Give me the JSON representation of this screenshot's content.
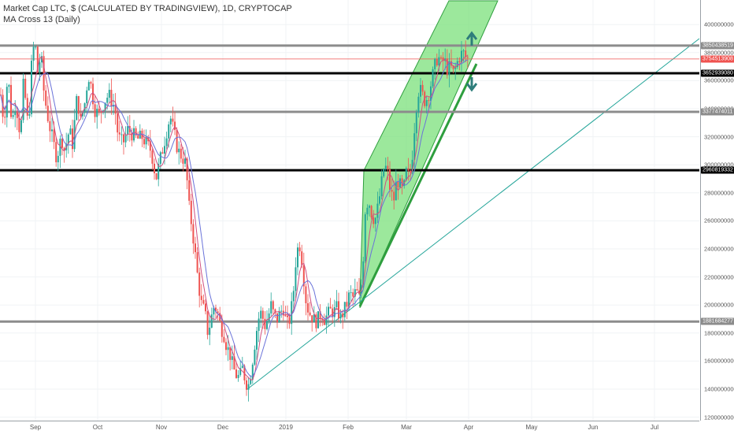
{
  "legend": {
    "title": "Market Cap LTC, $ (CALCULATED BY TRADINGVIEW), 1D, CRYPTOCAP",
    "indicator": "MA Cross 13 (Daily)"
  },
  "chart_data": {
    "type": "candlestick",
    "title": "Market Cap LTC, $ (CALCULATED BY TRADINGVIEW), 1D, CRYPTOCAP",
    "yaxis_ticks": [
      "4000000000",
      "3800000000",
      "3600000000",
      "3400000000",
      "3200000000",
      "3000000000",
      "2800000000",
      "2600000000",
      "2400000000",
      "2200000000",
      "2000000000",
      "1800000000",
      "1600000000",
      "1400000000",
      "1200000000"
    ],
    "xaxis_ticks": [
      "Sep",
      "Oct",
      "Nov",
      "Dec",
      "2019",
      "Feb",
      "Mar",
      "Apr",
      "May",
      "Jun",
      "Jul"
    ],
    "ylim": [
      1190000000,
      4170000000
    ],
    "grid": true,
    "horizontal_levels": [
      {
        "value": 3850438519,
        "label": "3850438519",
        "style": "gray-thick"
      },
      {
        "value": 3652939080,
        "label": "3652939080",
        "style": "black-thick"
      },
      {
        "value": 3377474011,
        "label": "3377474011",
        "style": "gray-thick"
      },
      {
        "value": 2960819332,
        "label": "2960819332",
        "style": "black-thick"
      },
      {
        "value": 1881684277,
        "label": "1881684277",
        "style": "gray-thick"
      }
    ],
    "current_price": {
      "value": 3754513908,
      "label": "3754513908",
      "color": "#ef5350"
    },
    "candle_path": [
      [
        0,
        3550000000
      ],
      [
        5,
        3300000000
      ],
      [
        10,
        3650000000
      ],
      [
        15,
        3300000000
      ],
      [
        20,
        3450000000
      ],
      [
        26,
        3200000000
      ],
      [
        30,
        3600000000
      ],
      [
        36,
        3250000000
      ],
      [
        40,
        3700000000
      ],
      [
        44,
        3900000000
      ],
      [
        48,
        3650000000
      ],
      [
        52,
        3800000000
      ],
      [
        56,
        3500000000
      ],
      [
        62,
        3300000000
      ],
      [
        68,
        3150000000
      ],
      [
        72,
        3050000000
      ],
      [
        78,
        3200000000
      ],
      [
        82,
        3100000000
      ],
      [
        88,
        3250000000
      ],
      [
        92,
        3150000000
      ],
      [
        98,
        3500000000
      ],
      [
        102,
        3300000000
      ],
      [
        108,
        3450000000
      ],
      [
        112,
        3650000000
      ],
      [
        116,
        3550000000
      ],
      [
        120,
        3400000000
      ],
      [
        126,
        3350000000
      ],
      [
        132,
        3450000000
      ],
      [
        138,
        3500000000
      ],
      [
        146,
        3400000000
      ],
      [
        150,
        3200000000
      ],
      [
        156,
        3150000000
      ],
      [
        162,
        3250000000
      ],
      [
        168,
        3220000000
      ],
      [
        174,
        3180000000
      ],
      [
        180,
        3200000000
      ],
      [
        186,
        3150000000
      ],
      [
        192,
        3100000000
      ],
      [
        198,
        2900000000
      ],
      [
        204,
        3050000000
      ],
      [
        210,
        3200000000
      ],
      [
        216,
        3350000000
      ],
      [
        220,
        3250000000
      ],
      [
        226,
        3100000000
      ],
      [
        232,
        3050000000
      ],
      [
        236,
        3000000000
      ],
      [
        240,
        2700000000
      ],
      [
        244,
        2550000000
      ],
      [
        248,
        2350000000
      ],
      [
        252,
        2150000000
      ],
      [
        256,
        2000000000
      ],
      [
        260,
        1950000000
      ],
      [
        264,
        1800000000
      ],
      [
        268,
        1900000000
      ],
      [
        272,
        2000000000
      ],
      [
        276,
        1950000000
      ],
      [
        280,
        1850000000
      ],
      [
        284,
        1800000000
      ],
      [
        288,
        1700000000
      ],
      [
        292,
        1650000000
      ],
      [
        296,
        1550000000
      ],
      [
        300,
        1500000000
      ],
      [
        304,
        1480000000
      ],
      [
        308,
        1550000000
      ],
      [
        312,
        1450000000
      ],
      [
        316,
        1430000000
      ],
      [
        320,
        1580000000
      ],
      [
        324,
        1750000000
      ],
      [
        328,
        1900000000
      ],
      [
        332,
        1950000000
      ],
      [
        336,
        1850000000
      ],
      [
        340,
        1900000000
      ],
      [
        344,
        2000000000
      ],
      [
        348,
        1920000000
      ],
      [
        352,
        1900000000
      ],
      [
        356,
        1950000000
      ],
      [
        360,
        1980000000
      ],
      [
        364,
        1850000000
      ],
      [
        368,
        1900000000
      ],
      [
        372,
        2050000000
      ],
      [
        376,
        2350000000
      ],
      [
        380,
        2450000000
      ],
      [
        384,
        2300000000
      ],
      [
        388,
        2050000000
      ],
      [
        392,
        1950000000
      ],
      [
        396,
        1920000000
      ],
      [
        400,
        1880000000
      ],
      [
        404,
        1900000000
      ],
      [
        408,
        1950000000
      ],
      [
        412,
        1900000000
      ],
      [
        416,
        1930000000
      ],
      [
        420,
        1960000000
      ],
      [
        424,
        1950000000
      ],
      [
        428,
        1980000000
      ],
      [
        432,
        1900000000
      ],
      [
        436,
        1950000000
      ],
      [
        440,
        2000000000
      ],
      [
        444,
        2080000000
      ],
      [
        448,
        2050000000
      ],
      [
        452,
        2100000000
      ],
      [
        456,
        2050000000
      ],
      [
        460,
        2200000000
      ],
      [
        464,
        2700000000
      ],
      [
        468,
        2750000000
      ],
      [
        472,
        2650000000
      ],
      [
        476,
        2600000000
      ],
      [
        480,
        2700000000
      ],
      [
        484,
        2850000000
      ],
      [
        488,
        3000000000
      ],
      [
        492,
        2950000000
      ],
      [
        496,
        2800000000
      ],
      [
        500,
        2750000000
      ],
      [
        504,
        2900000000
      ],
      [
        508,
        2850000000
      ],
      [
        512,
        2800000000
      ],
      [
        516,
        2950000000
      ],
      [
        520,
        2900000000
      ],
      [
        524,
        3100000000
      ],
      [
        528,
        3400000000
      ],
      [
        532,
        3550000000
      ],
      [
        536,
        3500000000
      ],
      [
        540,
        3450000000
      ],
      [
        544,
        3500000000
      ],
      [
        548,
        3600000000
      ],
      [
        552,
        3700000000
      ],
      [
        556,
        3780000000
      ],
      [
        560,
        3720000000
      ],
      [
        564,
        3750000000
      ],
      [
        568,
        3680000000
      ],
      [
        572,
        3700000000
      ],
      [
        576,
        3650000000
      ],
      [
        580,
        3720000000
      ],
      [
        584,
        3780000000
      ],
      [
        588,
        3800000000
      ],
      [
        592,
        3760000000
      ],
      [
        596,
        3754513908
      ]
    ],
    "price_axis_tags": [
      "3850438519",
      "3754513908",
      "3652939080",
      "3377474011",
      "2960819332",
      "1881684277"
    ],
    "colors": {
      "up": "#26a69a",
      "down": "#ef5350",
      "ma_fast": "#d04f80",
      "ma_slow": "#6a73d9",
      "channel_fill": "#7be07b",
      "channel_line": "#2e9e3e",
      "trendline": "#26a69a",
      "arrow": "#2e7d7b",
      "level_gray": "#8c8c8c",
      "level_black": "#000000"
    }
  }
}
